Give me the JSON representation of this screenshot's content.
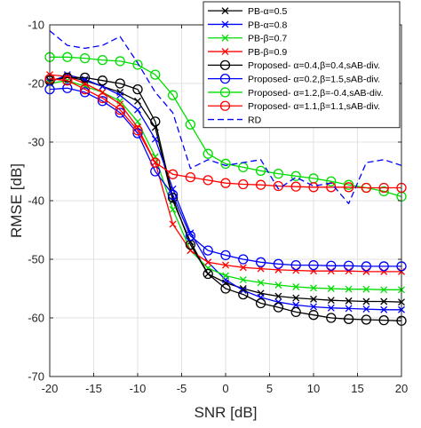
{
  "chart_data": {
    "type": "line",
    "title": "",
    "xlabel": "SNR [dB]",
    "ylabel": "RMSE [dB]",
    "xlim": [
      -20,
      20
    ],
    "ylim": [
      -70,
      -10
    ],
    "xticks": [
      -20,
      -15,
      -10,
      -5,
      0,
      5,
      10,
      15,
      20
    ],
    "yticks": [
      -70,
      -60,
      -50,
      -40,
      -30,
      -20,
      -10
    ],
    "grid": true,
    "legend_position": "top-right",
    "x": [
      -20,
      -18,
      -16,
      -14,
      -12,
      -10,
      -8,
      -6,
      -4,
      -2,
      0,
      2,
      4,
      6,
      8,
      10,
      12,
      14,
      16,
      18,
      20
    ],
    "series": [
      {
        "name": "PB-α=0.5",
        "color": "#000000",
        "marker": "x",
        "line": "solid",
        "values": [
          -19.5,
          -18.8,
          -19.5,
          -20.5,
          -21.5,
          -23.0,
          -27.5,
          -40.0,
          -47.0,
          -52.5,
          -54.0,
          -55.0,
          -55.8,
          -56.3,
          -56.6,
          -56.8,
          -57.0,
          -57.1,
          -57.2,
          -57.2,
          -57.3
        ]
      },
      {
        "name": "PB-α=0.8",
        "color": "#0000ff",
        "marker": "x",
        "line": "solid",
        "values": [
          -19.8,
          -18.5,
          -19.3,
          -20.5,
          -22.0,
          -24.5,
          -29.5,
          -38.0,
          -45.5,
          -50.5,
          -53.5,
          -55.3,
          -56.5,
          -57.3,
          -57.8,
          -58.1,
          -58.3,
          -58.4,
          -58.5,
          -58.6,
          -58.6
        ]
      },
      {
        "name": "PB-β=0.7",
        "color": "#00dd00",
        "marker": "x",
        "line": "solid",
        "values": [
          -20.0,
          -19.5,
          -20.5,
          -21.5,
          -23.0,
          -26.5,
          -32.5,
          -41.5,
          -48.5,
          -51.5,
          -52.8,
          -53.5,
          -54.0,
          -54.4,
          -54.7,
          -54.9,
          -55.0,
          -55.1,
          -55.1,
          -55.2,
          -55.2
        ]
      },
      {
        "name": "PB-β=0.9",
        "color": "#ff0000",
        "marker": "x",
        "line": "solid",
        "values": [
          -18.5,
          -18.8,
          -20.0,
          -21.5,
          -23.5,
          -27.5,
          -33.5,
          -44.0,
          -48.5,
          -50.5,
          -51.0,
          -51.4,
          -51.6,
          -51.8,
          -51.9,
          -52.0,
          -52.0,
          -52.0,
          -52.1,
          -52.1,
          -52.1
        ]
      },
      {
        "name": "Proposed- α=0.4,β=0.4,sAB-div.",
        "color": "#000000",
        "marker": "o",
        "line": "solid",
        "values": [
          -19.5,
          -19.0,
          -19.0,
          -19.5,
          -20.0,
          -21.0,
          -26.5,
          -39.5,
          -47.5,
          -52.5,
          -55.0,
          -56.0,
          -57.5,
          -58.2,
          -59.0,
          -59.5,
          -60.0,
          -60.2,
          -60.3,
          -60.4,
          -60.5
        ]
      },
      {
        "name": "Proposed- α=0.2,β=1.5,sAB-div.",
        "color": "#0000ff",
        "marker": "o",
        "line": "solid",
        "values": [
          -21.0,
          -20.8,
          -21.5,
          -23.0,
          -25.0,
          -28.5,
          -35.0,
          -39.0,
          -46.0,
          -48.5,
          -49.3,
          -50.0,
          -50.5,
          -50.8,
          -51.0,
          -51.0,
          -51.1,
          -51.1,
          -51.2,
          -51.2,
          -51.2
        ]
      },
      {
        "name": "Proposed- α=1.2,β=-0.4,sAB-div.",
        "color": "#00dd00",
        "marker": "o",
        "line": "solid",
        "values": [
          -15.5,
          -15.5,
          -15.7,
          -16.0,
          -16.2,
          -16.8,
          -18.5,
          -22.0,
          -27.0,
          -32.0,
          -33.7,
          -34.3,
          -34.9,
          -35.4,
          -35.8,
          -36.2,
          -36.7,
          -37.3,
          -37.8,
          -38.4,
          -39.3
        ]
      },
      {
        "name": "Proposed- α=1.1,β=1.1,sAB-div.",
        "color": "#ff0000",
        "marker": "o",
        "line": "solid",
        "values": [
          -19.2,
          -19.5,
          -21.0,
          -22.5,
          -24.5,
          -28.0,
          -33.5,
          -35.5,
          -36.0,
          -36.5,
          -37.0,
          -37.2,
          -37.3,
          -37.5,
          -37.6,
          -37.7,
          -37.7,
          -37.7,
          -37.8,
          -37.8,
          -37.8
        ]
      },
      {
        "name": "RD",
        "color": "#0000ff",
        "marker": "none",
        "line": "dashed",
        "values": [
          -11.0,
          -13.5,
          -14.0,
          -13.5,
          -12.0,
          -16.5,
          -21.5,
          -25.0,
          -34.5,
          -33.0,
          -34.0,
          -33.5,
          -33.0,
          -38.0,
          -36.0,
          -37.5,
          -37.0,
          -40.5,
          -33.5,
          -33.0,
          -34.0
        ]
      }
    ]
  }
}
